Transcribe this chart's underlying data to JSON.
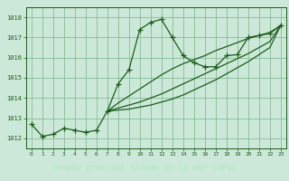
{
  "title": "Graphe pression niveau de la mer (hPa)",
  "bg_color": "#cce8d8",
  "plot_bg_color": "#cce8d8",
  "grid_color": "#88bb99",
  "line_color": "#1a5c1a",
  "label_bg_color": "#2d6b2d",
  "label_text_color": "#b8e8c8",
  "xlim": [
    -0.5,
    23.5
  ],
  "ylim": [
    1011.5,
    1018.5
  ],
  "xticks": [
    0,
    1,
    2,
    3,
    4,
    5,
    6,
    7,
    8,
    9,
    10,
    11,
    12,
    13,
    14,
    15,
    16,
    17,
    18,
    19,
    20,
    21,
    22,
    23
  ],
  "yticks": [
    1012,
    1013,
    1014,
    1015,
    1016,
    1017,
    1018
  ],
  "series1_x": [
    0,
    1,
    2,
    3,
    4,
    5,
    6,
    7,
    8,
    9,
    10,
    11,
    12,
    13,
    14,
    15,
    16,
    17,
    18,
    19,
    20,
    21,
    22,
    23
  ],
  "series1_y": [
    1012.7,
    1012.1,
    1012.2,
    1012.5,
    1012.4,
    1012.3,
    1012.4,
    1013.35,
    1014.7,
    1015.4,
    1017.4,
    1017.75,
    1017.9,
    1017.0,
    1016.1,
    1015.75,
    1015.55,
    1015.55,
    1016.1,
    1016.15,
    1017.0,
    1017.1,
    1017.2,
    1017.6
  ],
  "series2_x": [
    7,
    8,
    9,
    10,
    11,
    12,
    13,
    14,
    15,
    16,
    17,
    18,
    19,
    20,
    21,
    22,
    23
  ],
  "series2_y": [
    1013.35,
    1013.75,
    1014.1,
    1014.45,
    1014.8,
    1015.15,
    1015.45,
    1015.7,
    1015.9,
    1016.1,
    1016.35,
    1016.55,
    1016.75,
    1016.95,
    1017.1,
    1017.25,
    1017.6
  ],
  "series3_x": [
    7,
    8,
    9,
    10,
    11,
    12,
    13,
    14,
    15,
    16,
    17,
    18,
    19,
    20,
    21,
    22,
    23
  ],
  "series3_y": [
    1013.35,
    1013.5,
    1013.65,
    1013.8,
    1014.0,
    1014.2,
    1014.45,
    1014.7,
    1014.95,
    1015.2,
    1015.45,
    1015.7,
    1015.95,
    1016.2,
    1016.5,
    1016.8,
    1017.6
  ],
  "series4_x": [
    7,
    8,
    9,
    10,
    11,
    12,
    13,
    14,
    15,
    16,
    17,
    18,
    19,
    20,
    21,
    22,
    23
  ],
  "series4_y": [
    1013.35,
    1013.4,
    1013.45,
    1013.55,
    1013.65,
    1013.8,
    1013.95,
    1014.15,
    1014.4,
    1014.65,
    1014.9,
    1015.2,
    1015.5,
    1015.8,
    1016.15,
    1016.5,
    1017.6
  ]
}
